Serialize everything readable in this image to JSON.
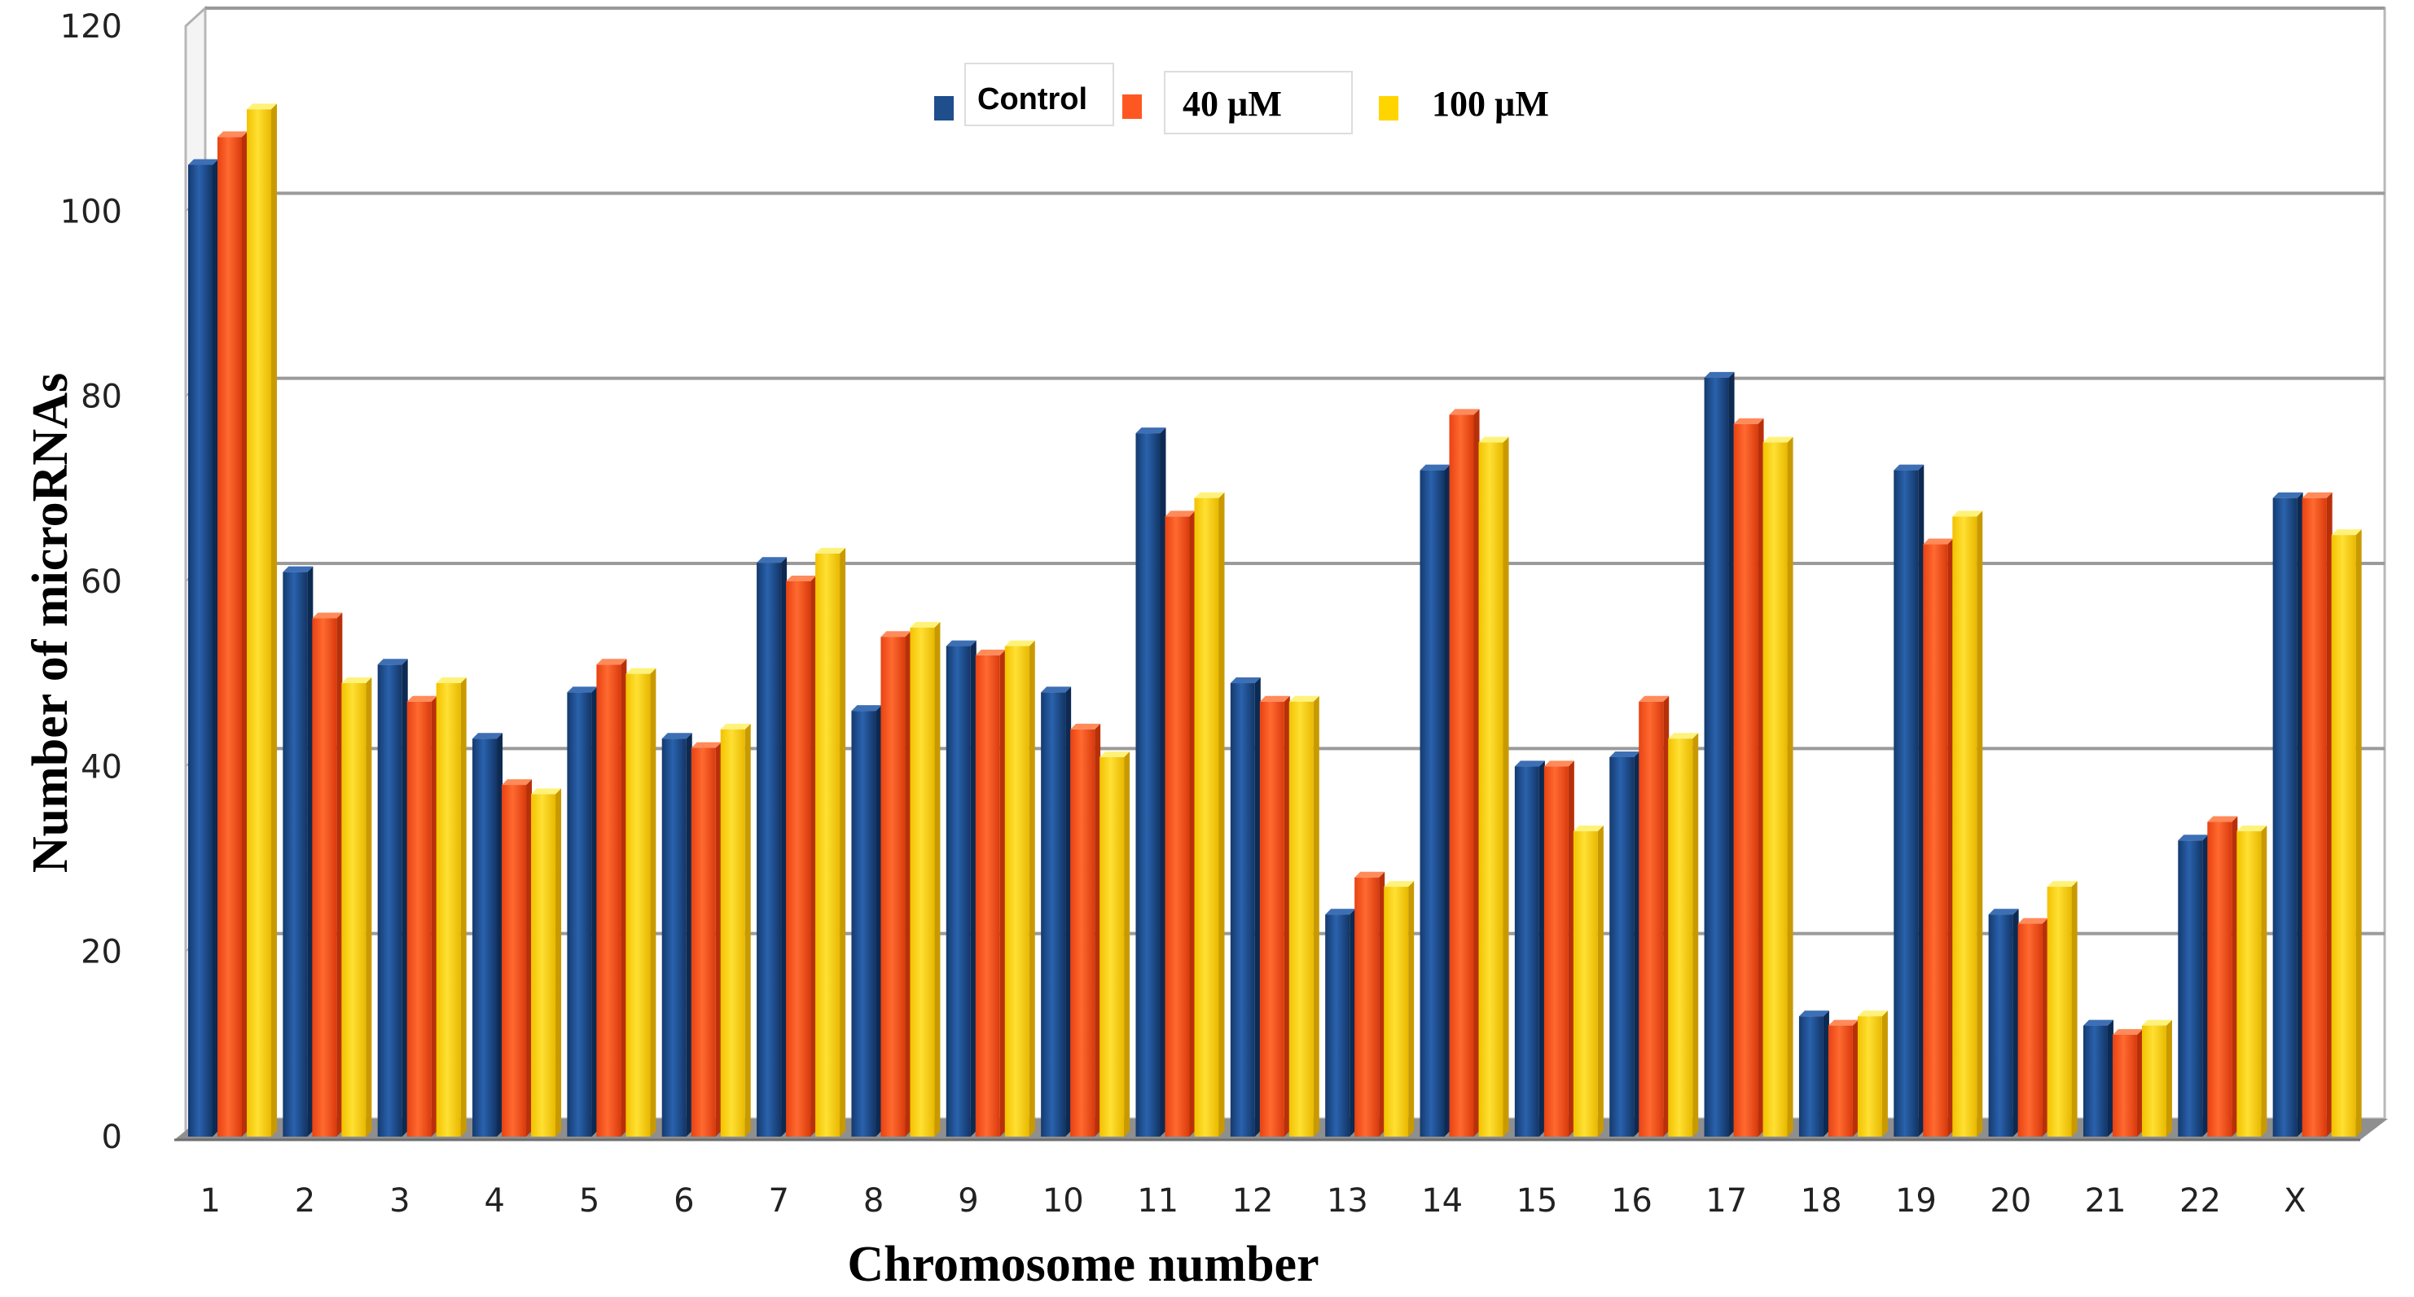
{
  "chart_data": {
    "type": "bar",
    "title": "",
    "xlabel": "Chromosome number",
    "ylabel": "Number of microRNAs",
    "ylim": [
      0,
      120
    ],
    "yticks": [
      0,
      20,
      40,
      60,
      80,
      100,
      120
    ],
    "grid": true,
    "legend_position": "top-center",
    "categories": [
      "1",
      "2",
      "3",
      "4",
      "5",
      "6",
      "7",
      "8",
      "9",
      "10",
      "11",
      "12",
      "13",
      "14",
      "15",
      "16",
      "17",
      "18",
      "19",
      "20",
      "21",
      "22",
      "X"
    ],
    "series": [
      {
        "name": "Control",
        "color": "#1f4e8c",
        "values": [
          105,
          61,
          51,
          43,
          48,
          43,
          62,
          46,
          53,
          48,
          76,
          49,
          24,
          72,
          40,
          41,
          82,
          13,
          72,
          24,
          12,
          32,
          69
        ]
      },
      {
        "name": "40 µM",
        "color": "#ff5722",
        "values": [
          108,
          56,
          47,
          38,
          51,
          42,
          60,
          54,
          52,
          44,
          67,
          47,
          28,
          78,
          40,
          47,
          77,
          12,
          64,
          23,
          11,
          34,
          69
        ]
      },
      {
        "name": "100 µM",
        "color": "#ffd500",
        "values": [
          111,
          49,
          49,
          37,
          50,
          44,
          63,
          55,
          53,
          41,
          69,
          47,
          27,
          75,
          33,
          43,
          75,
          13,
          67,
          27,
          12,
          33,
          65
        ]
      }
    ]
  }
}
